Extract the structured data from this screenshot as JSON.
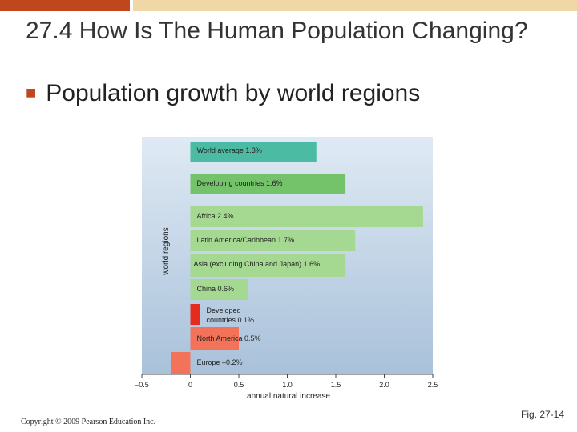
{
  "slide": {
    "title": "27.4 How Is The Human Population Changing?",
    "bullet_text": "Population growth by world regions",
    "bullet_icon": "square-bullet-icon",
    "copyright": "Copyright © 2009 Pearson Education Inc.",
    "figure_label": "Fig. 27-14",
    "colors": {
      "title_bar": "#c0461e",
      "title_bar_light": "#efd7a6"
    }
  },
  "chart_data": {
    "type": "bar",
    "orientation": "horizontal",
    "title": "",
    "xlabel": "annual natural increase",
    "ylabel": "world regions",
    "xlim": [
      -0.5,
      2.5
    ],
    "x_ticks": [
      "–0.5",
      "0",
      "0.5",
      "1.0",
      "1.5",
      "2.0",
      "2.5"
    ],
    "x_tick_values": [
      -0.5,
      0,
      0.5,
      1.0,
      1.5,
      2.0,
      2.5
    ],
    "grid": false,
    "bars": [
      {
        "label": "World average 1.3%",
        "value": 1.3,
        "color": "#4bbba4"
      },
      {
        "label": "Developing countries 1.6%",
        "value": 1.6,
        "color": "#74c26a"
      },
      {
        "label": "Africa 2.4%",
        "value": 2.4,
        "color": "#a5d992"
      },
      {
        "label": "Latin America/Caribbean 1.7%",
        "value": 1.7,
        "color": "#a5d992"
      },
      {
        "label": "Asia (excluding China and Japan) 1.6%",
        "value": 1.6,
        "color": "#a5d992"
      },
      {
        "label": "China 0.6%",
        "value": 0.6,
        "color": "#a5d992"
      },
      {
        "label": "Developed countries 0.1%",
        "label_lines": [
          "Developed",
          "countries 0.1%"
        ],
        "value": 0.1,
        "color": "#e52b20"
      },
      {
        "label": "North America 0.5%",
        "value": 0.5,
        "color": "#f2735a"
      },
      {
        "label": "Europe –0.2%",
        "value": -0.2,
        "color": "#f2735a"
      }
    ]
  }
}
